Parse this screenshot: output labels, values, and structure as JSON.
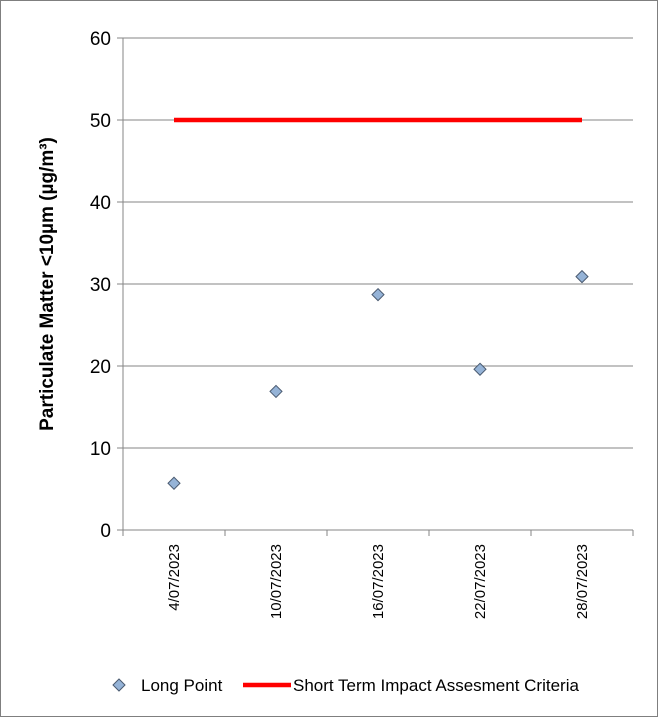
{
  "chart_data": {
    "type": "scatter",
    "title": "",
    "xlabel": "",
    "ylabel": "Particulate Matter <10µm (µg/m³)",
    "ylim": [
      0,
      60
    ],
    "yticks": [
      0,
      10,
      20,
      30,
      40,
      50,
      60
    ],
    "categories": [
      "4/07/2023",
      "10/07/2023",
      "16/07/2023",
      "22/07/2023",
      "28/07/2023"
    ],
    "grid": true,
    "legend_position": "bottom",
    "series": [
      {
        "name": "Long Point",
        "kind": "scatter",
        "marker": "diamond",
        "color": "#95b3d7",
        "values": [
          5.7,
          16.9,
          28.7,
          19.6,
          30.9
        ]
      },
      {
        "name": "Short Term Impact Assesment Criteria",
        "kind": "line",
        "color": "#ff0000",
        "values": [
          50,
          50,
          50,
          50,
          50
        ]
      }
    ]
  }
}
